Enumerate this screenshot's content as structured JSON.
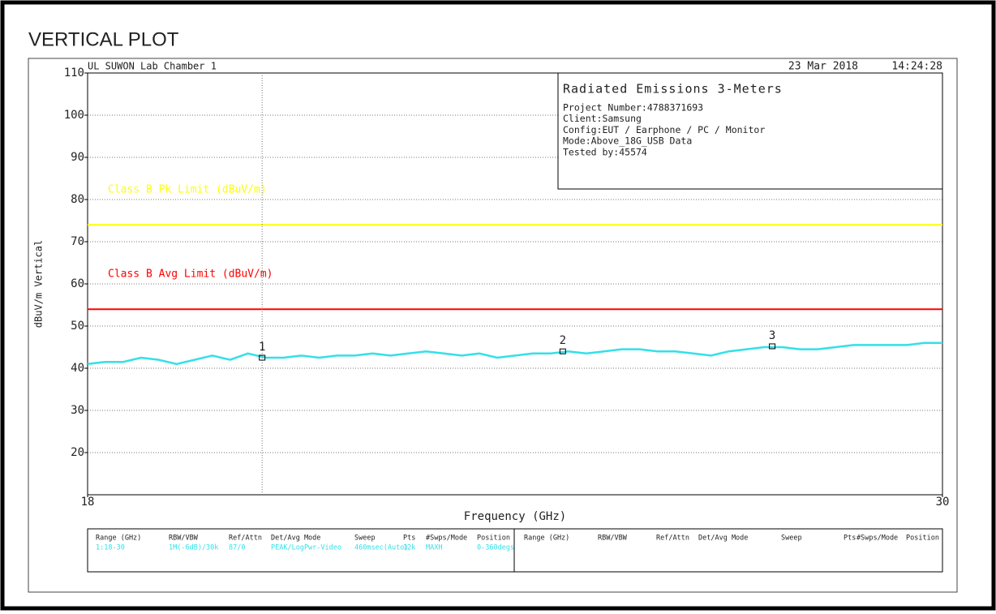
{
  "chart_data": {
    "type": "line",
    "title": "VERTICAL PLOT",
    "site": "UL SUWON Lab Chamber 1",
    "date": "23 Mar 2018",
    "time": "14:24:28",
    "info": {
      "title": "Radiated Emissions 3-Meters",
      "lines": [
        "Project Number:4788371693",
        "Client:Samsung",
        "Config:EUT / Earphone / PC / Monitor",
        "Mode:Above_18G_USB Data",
        "Tested by:45574"
      ]
    },
    "xlabel": "Frequency (GHz)",
    "ylabel": "dBuV/m Vertical",
    "xlim": [
      18,
      30
    ],
    "xticks": [
      18,
      30
    ],
    "ylim": [
      10,
      110
    ],
    "yticks": [
      20,
      30,
      40,
      50,
      60,
      70,
      80,
      90,
      100,
      110
    ],
    "grid": true,
    "limit_lines": [
      {
        "name": "Class B Pk Limit (dBuV/m)",
        "color": "#ffff00",
        "value": 74
      },
      {
        "name": "Class B Avg Limit (dBuV/m)",
        "color": "#ff0000",
        "value": 54
      }
    ],
    "series": [
      {
        "name": "Trace",
        "color": "#33e0e8",
        "x": [
          18,
          18.25,
          18.5,
          18.75,
          19,
          19.25,
          19.5,
          19.75,
          20,
          20.25,
          20.5,
          20.75,
          21,
          21.25,
          21.5,
          21.75,
          22,
          22.25,
          22.5,
          22.75,
          23,
          23.25,
          23.5,
          23.75,
          24,
          24.25,
          24.5,
          24.75,
          25,
          25.25,
          25.5,
          25.75,
          26,
          26.25,
          26.5,
          26.75,
          27,
          27.25,
          27.5,
          27.75,
          28,
          28.25,
          28.5,
          28.75,
          29,
          29.25,
          29.5,
          29.75,
          30
        ],
        "values": [
          41,
          41.5,
          41.5,
          42.5,
          42,
          41,
          42,
          43,
          42,
          43.5,
          42.5,
          42.5,
          43,
          42.5,
          43,
          43,
          43.5,
          43,
          43.5,
          44,
          43.5,
          43,
          43.5,
          42.5,
          43,
          43.5,
          43.5,
          44,
          43.5,
          44,
          44.5,
          44.5,
          44,
          44,
          43.5,
          43,
          44,
          44.5,
          45,
          45,
          44.5,
          44.5,
          45,
          45.5,
          45.5,
          45.5,
          45.5,
          46,
          46
        ]
      }
    ],
    "markers": {
      "labels": [
        "1",
        "2",
        "3"
      ],
      "x": [
        20.45,
        24.67,
        27.61
      ],
      "values": [
        42.5,
        44,
        45.2
      ]
    },
    "settings_table": {
      "headers": [
        "Range (GHz)",
        "RBW/VBW",
        "Ref/Attn",
        "Det/Avg Mode",
        "Sweep",
        "Pts",
        "#Swps/Mode",
        "Position"
      ],
      "rows": [
        [
          "1:18-30",
          "1M(-6dB)/30k",
          "87/0",
          "PEAK/LogPwr-Video",
          "460msec(Auto)",
          "12k",
          "MAXH",
          "0-360degs"
        ]
      ]
    }
  }
}
